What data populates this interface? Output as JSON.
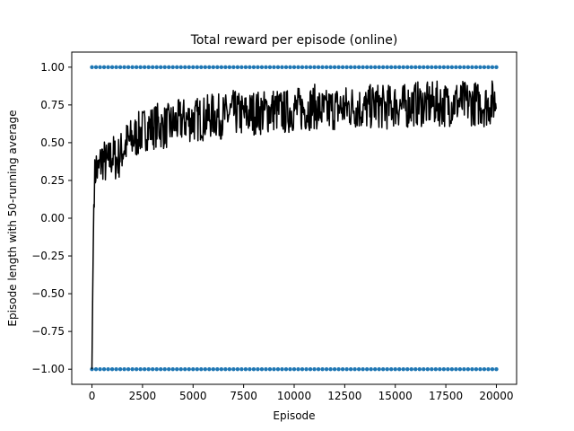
{
  "chart_data": {
    "type": "line",
    "title": "Total reward per episode (online)",
    "xlabel": "Episode",
    "ylabel": "Episode length with 50-running average",
    "xlim": [
      -1000,
      21000
    ],
    "ylim": [
      -1.1,
      1.1
    ],
    "x_ticks": [
      0,
      2500,
      5000,
      7500,
      10000,
      12500,
      15000,
      17500,
      20000
    ],
    "x_tick_labels": [
      "0",
      "2500",
      "5000",
      "7500",
      "10000",
      "12500",
      "15000",
      "17500",
      "20000"
    ],
    "y_ticks": [
      -1.0,
      -0.75,
      -0.5,
      -0.25,
      0.0,
      0.25,
      0.5,
      0.75,
      1.0
    ],
    "y_tick_labels": [
      "−1.00",
      "−0.75",
      "−0.50",
      "−0.25",
      "0.00",
      "0.25",
      "0.50",
      "0.75",
      "1.00"
    ],
    "grid": false,
    "legend": false,
    "series": [
      {
        "kind": "scatter",
        "color": "#1f77b4",
        "description": "per-episode reward, values are either +1 or -1 for every episode 0..20000",
        "levels": [
          1.0,
          -1.0
        ],
        "x_range": [
          0,
          20000
        ]
      },
      {
        "kind": "line",
        "color": "#000000",
        "x": [
          0,
          50,
          100,
          200,
          300,
          500,
          750,
          1000,
          1250,
          1500,
          1750,
          2000,
          2250,
          2500,
          2750,
          3000,
          3250,
          3500,
          4000,
          4500,
          5000,
          5500,
          6000,
          6500,
          7000,
          7500,
          8000,
          8500,
          9000,
          9500,
          10000,
          10500,
          11000,
          11500,
          12000,
          12500,
          13000,
          13500,
          14000,
          14500,
          15000,
          15500,
          16000,
          16500,
          17000,
          17500,
          18000,
          18500,
          19000,
          19500,
          20000
        ],
        "y": [
          -1.0,
          -0.35,
          0.2,
          0.35,
          0.3,
          0.4,
          0.35,
          0.42,
          0.38,
          0.45,
          0.5,
          0.52,
          0.55,
          0.58,
          0.6,
          0.6,
          0.62,
          0.6,
          0.62,
          0.65,
          0.65,
          0.66,
          0.68,
          0.67,
          0.7,
          0.68,
          0.7,
          0.7,
          0.72,
          0.7,
          0.72,
          0.72,
          0.74,
          0.7,
          0.73,
          0.73,
          0.74,
          0.72,
          0.75,
          0.73,
          0.75,
          0.74,
          0.76,
          0.75,
          0.76,
          0.75,
          0.77,
          0.76,
          0.76,
          0.75,
          0.78
        ],
        "noise_amplitude": 0.15,
        "min_y": -1.0,
        "max_y": 1.0
      }
    ]
  }
}
